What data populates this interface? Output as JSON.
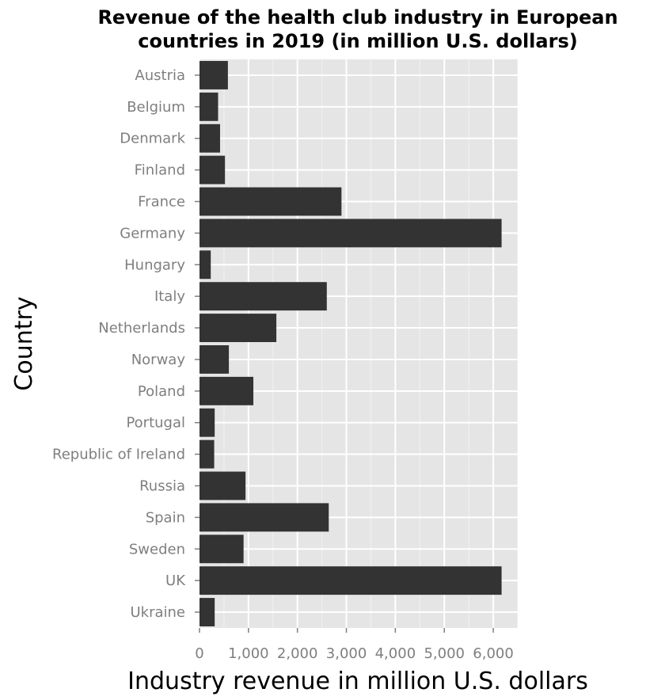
{
  "chart_data": {
    "type": "bar",
    "orientation": "horizontal",
    "title": "Revenue of the health club industry in European countries in 2019 (in million U.S. dollars)",
    "title_lines": [
      "Revenue of the health club industry in European",
      "countries in 2019 (in million U.S. dollars)"
    ],
    "xlabel": "Industry revenue in million U.S. dollars",
    "ylabel": "Country",
    "categories": [
      "Austria",
      "Belgium",
      "Denmark",
      "Finland",
      "France",
      "Germany",
      "Hungary",
      "Italy",
      "Netherlands",
      "Norway",
      "Poland",
      "Portugal",
      "Republic of Ireland",
      "Russia",
      "Spain",
      "Sweden",
      "UK",
      "Ukraine"
    ],
    "values": [
      580,
      380,
      420,
      520,
      2900,
      6170,
      230,
      2600,
      1570,
      600,
      1100,
      310,
      300,
      940,
      2640,
      900,
      6170,
      310
    ],
    "xlim": [
      0,
      6500
    ],
    "xticks": [
      0,
      1000,
      2000,
      3000,
      4000,
      5000,
      6000
    ],
    "xtick_labels": [
      "0",
      "1,000",
      "2,000",
      "3,000",
      "4,000",
      "5,000",
      "6,000"
    ],
    "grid": true,
    "legend": "none",
    "colors": {
      "bar": "#333333",
      "panel": "#e5e5e5",
      "grid": "#ffffff",
      "tick_text": "#7f7f7f"
    }
  }
}
